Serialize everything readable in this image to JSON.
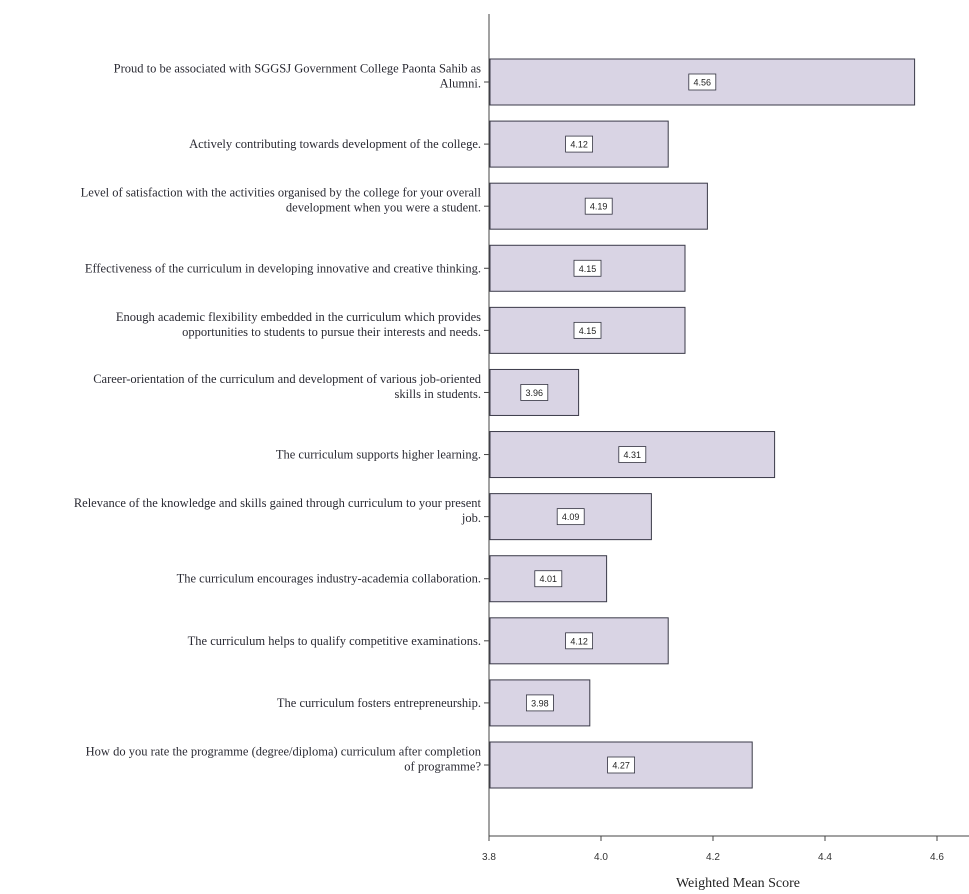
{
  "chart_data": {
    "type": "bar",
    "orientation": "horizontal",
    "title": "",
    "xlabel": "Weighted Mean Score",
    "ylabel": "",
    "xlim": [
      3.8,
      4.6
    ],
    "xticks": [
      "3.8",
      "4.0",
      "4.2",
      "4.4",
      "4.6"
    ],
    "grid": false,
    "categories": [
      [
        "Proud to be associated with SGGSJ Government College Paonta Sahib as",
        "Alumni."
      ],
      [
        "Actively contributing towards development of the college."
      ],
      [
        "Level of satisfaction with the activities organised by the college for your overall",
        "development when you were a student."
      ],
      [
        "Effectiveness of the curriculum in developing innovative and creative thinking."
      ],
      [
        "Enough academic flexibility embedded in the curriculum which provides",
        "opportunities to students to pursue their interests and needs."
      ],
      [
        "Career-orientation of the curriculum and development of various job-oriented",
        "skills in students."
      ],
      [
        "The curriculum supports higher learning."
      ],
      [
        "Relevance of the knowledge and skills gained through curriculum to your present",
        "job."
      ],
      [
        "The curriculum encourages industry-academia collaboration."
      ],
      [
        "The curriculum helps to qualify competitive examinations."
      ],
      [
        "The curriculum fosters entrepreneurship."
      ],
      [
        "How do you rate the programme (degree/diploma) curriculum after completion",
        "of programme?"
      ]
    ],
    "values": [
      4.56,
      4.12,
      4.19,
      4.15,
      4.15,
      3.96,
      4.31,
      4.09,
      4.01,
      4.12,
      3.98,
      4.27
    ],
    "value_labels": [
      "4.56",
      "4.12",
      "4.19",
      "4.15",
      "4.15",
      "3.96",
      "4.31",
      "4.09",
      "4.01",
      "4.12",
      "3.98",
      "4.27"
    ],
    "bar_color": "#d9d4e4",
    "bar_edge_color": "#3a3a48"
  }
}
